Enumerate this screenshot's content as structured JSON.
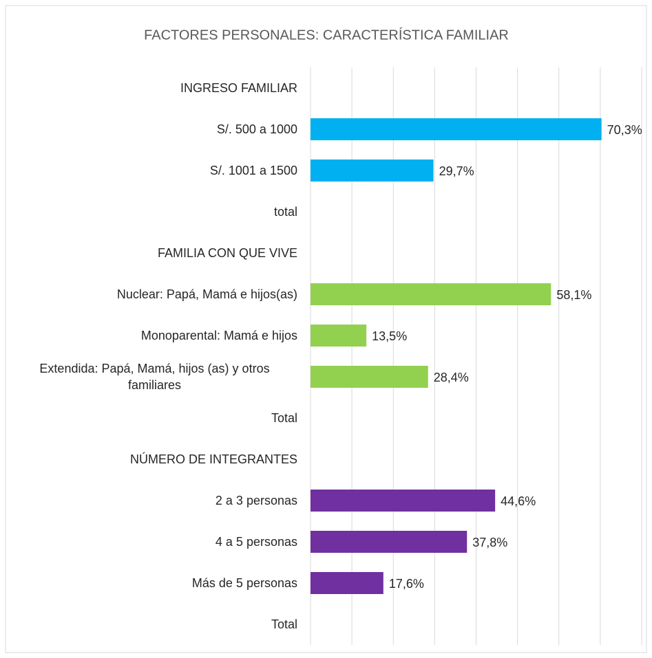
{
  "chart_data": {
    "type": "hbar",
    "title": "FACTORES PERSONALES: CARACTERÍSTICA FAMILIAR",
    "categories": [
      "INGRESO FAMILIAR",
      "S/. 500 a 1000",
      "S/. 1001 a 1500",
      "total",
      "FAMILIA CON QUE VIVE",
      "Nuclear: Papá, Mamá e hijos(as)",
      "Monoparental: Mamá e hijos",
      "Extendida: Papá, Mamá, hijos (as) y otros familiares",
      "Total",
      "NÚMERO DE INTEGRANTES",
      "2 a 3 personas",
      "4 a 5 personas",
      "Más de 5 personas",
      "Total"
    ],
    "values": [
      null,
      70.3,
      29.7,
      null,
      null,
      58.1,
      13.5,
      28.4,
      null,
      null,
      44.6,
      37.8,
      17.6,
      null
    ],
    "value_labels": [
      null,
      "70,3%",
      "29,7%",
      null,
      null,
      "58,1%",
      "13,5%",
      "28,4%",
      null,
      null,
      "44,6%",
      "37,8%",
      "17,6%",
      null
    ],
    "colors": [
      null,
      "#00b0f0",
      "#00b0f0",
      null,
      null,
      "#92d050",
      "#92d050",
      "#92d050",
      null,
      null,
      "#7030a0",
      "#7030a0",
      "#7030a0",
      null
    ],
    "xlim": [
      0,
      80
    ],
    "xticks": [
      0,
      10,
      20,
      30,
      40,
      50,
      60,
      70,
      80
    ],
    "xtick_labels": false,
    "grid": true
  }
}
